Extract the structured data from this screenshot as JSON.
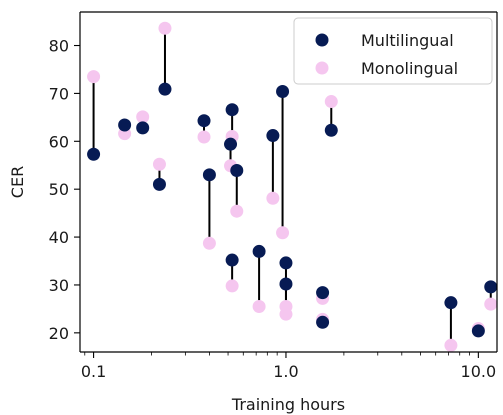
{
  "chart_data": {
    "type": "scatter",
    "xlabel": "Training hours",
    "ylabel": "CER",
    "x_scale": "log",
    "xlim": [
      0.085,
      12.5
    ],
    "ylim": [
      16,
      87
    ],
    "x_ticks": [
      {
        "value": 0.1,
        "label": "0.1"
      },
      {
        "value": 1.0,
        "label": "1.0"
      },
      {
        "value": 10.0,
        "label": "10.0"
      }
    ],
    "y_ticks": [
      {
        "value": 20,
        "label": "20"
      },
      {
        "value": 30,
        "label": "30"
      },
      {
        "value": 40,
        "label": "40"
      },
      {
        "value": 50,
        "label": "50"
      },
      {
        "value": 60,
        "label": "60"
      },
      {
        "value": 70,
        "label": "70"
      },
      {
        "value": 80,
        "label": "80"
      }
    ],
    "grid": false,
    "legend_position": "top-right",
    "series": [
      {
        "name": "Multilingual",
        "color": "#071b54",
        "points": [
          {
            "x": 0.1,
            "y": 57.3
          },
          {
            "x": 0.145,
            "y": 63.4
          },
          {
            "x": 0.18,
            "y": 62.8
          },
          {
            "x": 0.22,
            "y": 51.0
          },
          {
            "x": 0.235,
            "y": 70.9
          },
          {
            "x": 0.375,
            "y": 64.3
          },
          {
            "x": 0.4,
            "y": 53.0
          },
          {
            "x": 0.515,
            "y": 59.4
          },
          {
            "x": 0.525,
            "y": 66.6
          },
          {
            "x": 0.525,
            "y": 35.2
          },
          {
            "x": 0.555,
            "y": 53.9
          },
          {
            "x": 0.725,
            "y": 37.0
          },
          {
            "x": 0.855,
            "y": 61.2
          },
          {
            "x": 0.96,
            "y": 70.4
          },
          {
            "x": 1.0,
            "y": 34.6
          },
          {
            "x": 1.0,
            "y": 30.2
          },
          {
            "x": 1.55,
            "y": 28.4
          },
          {
            "x": 1.55,
            "y": 22.2
          },
          {
            "x": 1.72,
            "y": 62.3
          },
          {
            "x": 7.2,
            "y": 26.3
          },
          {
            "x": 10.0,
            "y": 20.4
          },
          {
            "x": 11.6,
            "y": 29.6
          }
        ]
      },
      {
        "name": "Monolingual",
        "color": "#f5c6ef",
        "points": [
          {
            "x": 0.1,
            "y": 73.5
          },
          {
            "x": 0.145,
            "y": 61.6
          },
          {
            "x": 0.18,
            "y": 65.1
          },
          {
            "x": 0.22,
            "y": 55.2
          },
          {
            "x": 0.235,
            "y": 83.6
          },
          {
            "x": 0.375,
            "y": 60.9
          },
          {
            "x": 0.4,
            "y": 38.7
          },
          {
            "x": 0.515,
            "y": 54.9
          },
          {
            "x": 0.525,
            "y": 61.0
          },
          {
            "x": 0.525,
            "y": 29.8
          },
          {
            "x": 0.555,
            "y": 45.4
          },
          {
            "x": 0.725,
            "y": 25.5
          },
          {
            "x": 0.855,
            "y": 48.1
          },
          {
            "x": 0.96,
            "y": 40.9
          },
          {
            "x": 1.0,
            "y": 25.5
          },
          {
            "x": 1.0,
            "y": 23.9
          },
          {
            "x": 1.55,
            "y": 27.2
          },
          {
            "x": 1.55,
            "y": 22.8
          },
          {
            "x": 1.72,
            "y": 68.3
          },
          {
            "x": 7.2,
            "y": 17.4
          },
          {
            "x": 10.0,
            "y": 20.9
          },
          {
            "x": 11.6,
            "y": 26.0
          }
        ]
      }
    ]
  }
}
